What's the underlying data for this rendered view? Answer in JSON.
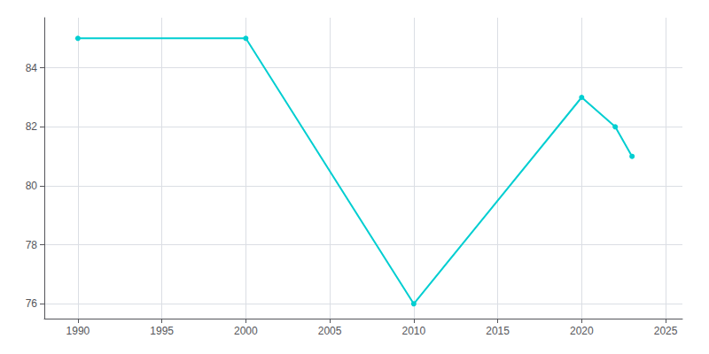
{
  "chart_data": {
    "type": "line",
    "x": [
      1990,
      2000,
      2010,
      2020,
      2022,
      2023
    ],
    "values": [
      85,
      85,
      76,
      83,
      82,
      81
    ],
    "color": "#00CED1",
    "marker": "circle",
    "xlim": [
      1988,
      2026
    ],
    "xticks": [
      1990,
      1995,
      2000,
      2005,
      2010,
      2015,
      2020,
      2025
    ],
    "ylim": [
      75.5,
      85.7
    ],
    "yticks": [
      76,
      78,
      80,
      82,
      84
    ],
    "grid": true
  }
}
